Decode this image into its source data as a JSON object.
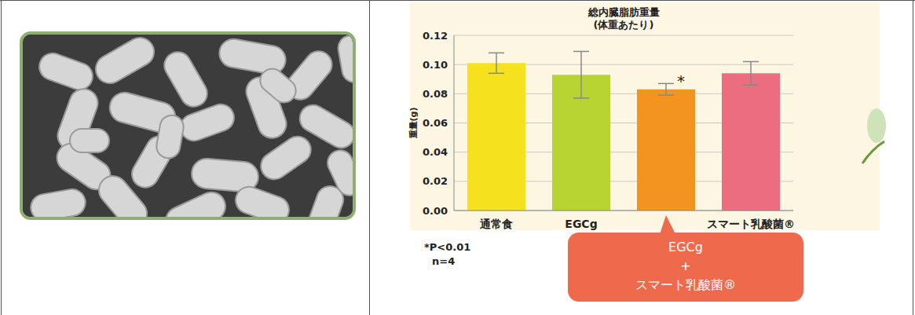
{
  "chart_data": {
    "type": "bar",
    "title": "総内臓脂肪重量",
    "subtitle": "(体重あたり)",
    "y_label": "重量(g)",
    "categories": [
      "通常食",
      "EGCg",
      "EGCg + スマート乳酸菌®",
      "スマート乳酸菌®"
    ],
    "values": [
      0.101,
      0.093,
      0.083,
      0.094
    ],
    "errors": [
      0.007,
      0.016,
      0.004,
      0.008
    ],
    "colors": [
      "#f5e11e",
      "#b8d433",
      "#f39420",
      "#ec6d80"
    ],
    "significance": [
      null,
      null,
      "*",
      null
    ],
    "notes": [
      "*P<0.01",
      "n=4"
    ],
    "ylim": [
      0,
      0.12
    ],
    "yticks": [
      {
        "value": 0,
        "label": "0.00"
      },
      {
        "value": 0.02,
        "label": "0.02"
      },
      {
        "value": 0.04,
        "label": "0.04"
      },
      {
        "value": 0.06,
        "label": "0.06"
      },
      {
        "value": 0.08,
        "label": "0.08"
      },
      {
        "value": 0.1,
        "label": "0.10"
      },
      {
        "value": 0.12,
        "label": "0.12"
      }
    ],
    "grid": true
  }
}
